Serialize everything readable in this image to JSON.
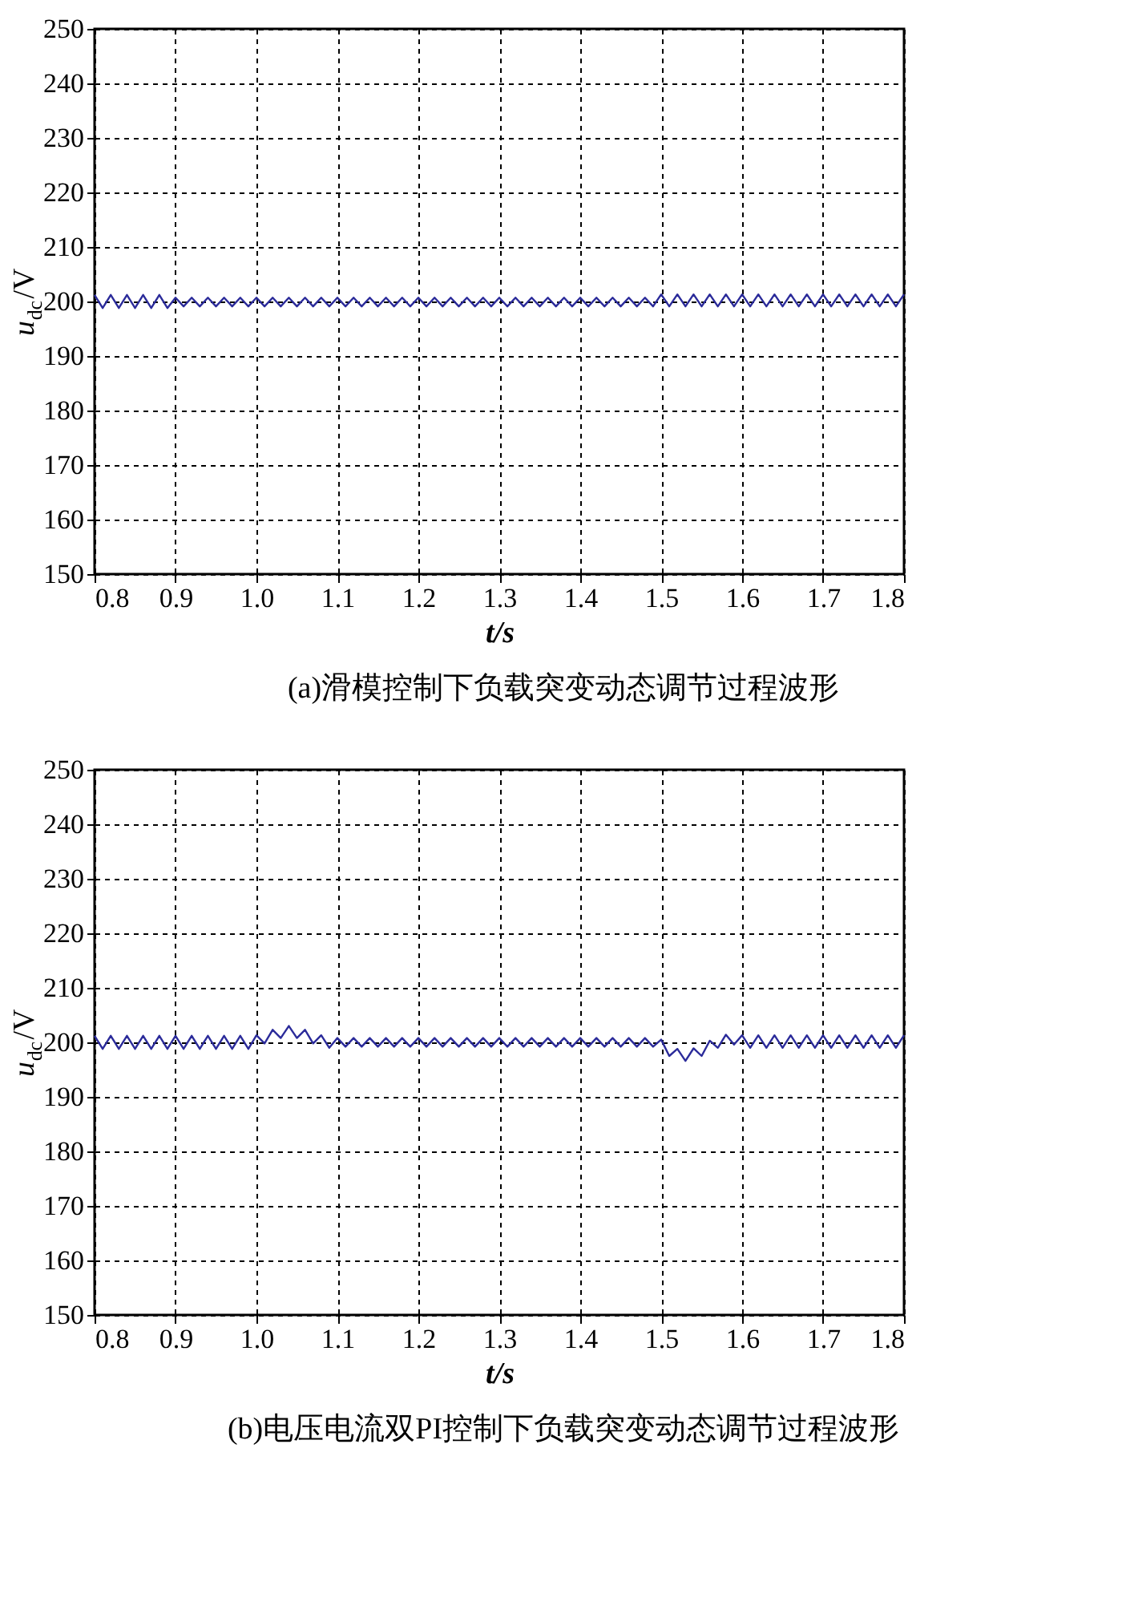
{
  "chart_data": [
    {
      "type": "line",
      "xlabel": "t/s",
      "ylabel": "u$_{dc}$/V",
      "annotations": [
        "(a)滑模控制下负载突变动态调节过程波形"
      ],
      "xlim": [
        0.8,
        1.8
      ],
      "xticks": [
        0.8,
        0.9,
        {
          "value": 1,
          "label": "1.0"
        },
        1.1,
        1.2,
        1.3,
        1.4,
        1.5,
        1.6,
        1.7,
        1.8
      ],
      "ylim": [
        150,
        250
      ],
      "yticks": [
        150,
        160,
        170,
        180,
        190,
        200,
        210,
        220,
        230,
        240,
        250
      ],
      "grid": true,
      "line_style": "solid",
      "x": [
        0.8,
        0.81,
        0.82,
        0.83,
        0.84,
        0.85,
        0.86,
        0.87,
        0.88,
        0.89,
        0.9,
        0.91,
        0.92,
        0.93,
        0.94,
        0.95,
        0.96,
        0.97,
        0.98,
        0.99,
        1.0,
        1.01,
        1.02,
        1.03,
        1.04,
        1.05,
        1.06,
        1.07,
        1.08,
        1.09,
        1.1,
        1.11,
        1.12,
        1.13,
        1.14,
        1.15,
        1.16,
        1.17,
        1.18,
        1.19,
        1.2,
        1.21,
        1.22,
        1.23,
        1.24,
        1.25,
        1.26,
        1.27,
        1.28,
        1.29,
        1.3,
        1.31,
        1.32,
        1.33,
        1.34,
        1.35,
        1.36,
        1.37,
        1.38,
        1.39,
        1.4,
        1.41,
        1.42,
        1.43,
        1.44,
        1.45,
        1.46,
        1.47,
        1.48,
        1.49,
        1.5,
        1.51,
        1.52,
        1.53,
        1.54,
        1.55,
        1.56,
        1.57,
        1.58,
        1.59,
        1.6,
        1.61,
        1.62,
        1.63,
        1.64,
        1.65,
        1.66,
        1.67,
        1.68,
        1.69,
        1.7,
        1.71,
        1.72,
        1.73,
        1.74,
        1.75,
        1.76,
        1.77,
        1.78,
        1.79,
        1.8
      ],
      "series": [
        {
          "color": "#2b2b9a",
          "values": [
            201.2,
            198.8,
            201.2,
            198.8,
            201.2,
            198.8,
            201.2,
            198.8,
            201.2,
            198.8,
            200.7,
            199.1,
            200.7,
            199.1,
            200.7,
            199.1,
            200.7,
            199.1,
            200.7,
            199.1,
            200.7,
            199.1,
            200.7,
            199.1,
            200.7,
            199.1,
            200.7,
            199.1,
            200.7,
            199.1,
            200.7,
            199.1,
            200.7,
            199.1,
            200.7,
            199.1,
            200.7,
            199.1,
            200.7,
            199.1,
            200.7,
            199.1,
            200.7,
            199.1,
            200.7,
            199.1,
            200.7,
            199.1,
            200.7,
            199.1,
            200.7,
            199.1,
            200.7,
            199.1,
            200.7,
            199.1,
            200.7,
            199.1,
            200.7,
            199.1,
            200.7,
            199.1,
            200.7,
            199.1,
            200.7,
            199.1,
            200.7,
            199.1,
            200.7,
            199.1,
            201.3,
            199.1,
            201.3,
            199.1,
            201.3,
            199.1,
            201.3,
            199.1,
            201.3,
            199.1,
            201.3,
            199.1,
            201.3,
            199.1,
            201.3,
            199.1,
            201.3,
            199.1,
            201.3,
            199.1,
            201.3,
            199.1,
            201.3,
            199.1,
            201.3,
            199.1,
            201.3,
            199.1,
            201.3,
            199.1,
            201.3
          ]
        }
      ]
    },
    {
      "type": "line",
      "xlabel": "t/s",
      "ylabel": "u$_{dc}$/V",
      "annotations": [
        "(b)电压电流双PI控制下负载突变动态调节过程波形"
      ],
      "xlim": [
        0.8,
        1.8
      ],
      "xticks": [
        0.8,
        0.9,
        {
          "value": 1,
          "label": "1.0"
        },
        1.1,
        1.2,
        1.3,
        1.4,
        1.5,
        1.6,
        1.7,
        1.8
      ],
      "ylim": [
        150,
        250
      ],
      "yticks": [
        150,
        160,
        170,
        180,
        190,
        200,
        210,
        220,
        230,
        240,
        250
      ],
      "grid": true,
      "line_style": "solid",
      "x": [
        0.8,
        0.81,
        0.82,
        0.83,
        0.84,
        0.85,
        0.86,
        0.87,
        0.88,
        0.89,
        0.9,
        0.91,
        0.92,
        0.93,
        0.94,
        0.95,
        0.96,
        0.97,
        0.98,
        0.99,
        1.0,
        1.01,
        1.02,
        1.03,
        1.04,
        1.05,
        1.06,
        1.07,
        1.08,
        1.09,
        1.1,
        1.11,
        1.12,
        1.13,
        1.14,
        1.15,
        1.16,
        1.17,
        1.18,
        1.19,
        1.2,
        1.21,
        1.22,
        1.23,
        1.24,
        1.25,
        1.26,
        1.27,
        1.28,
        1.29,
        1.3,
        1.31,
        1.32,
        1.33,
        1.34,
        1.35,
        1.36,
        1.37,
        1.38,
        1.39,
        1.4,
        1.41,
        1.42,
        1.43,
        1.44,
        1.45,
        1.46,
        1.47,
        1.48,
        1.49,
        1.5,
        1.51,
        1.52,
        1.53,
        1.54,
        1.55,
        1.56,
        1.57,
        1.58,
        1.59,
        1.6,
        1.61,
        1.62,
        1.63,
        1.64,
        1.65,
        1.66,
        1.67,
        1.68,
        1.69,
        1.7,
        1.71,
        1.72,
        1.73,
        1.74,
        1.75,
        1.76,
        1.77,
        1.78,
        1.79,
        1.8
      ],
      "series": [
        {
          "color": "#2b2b9a",
          "values": [
            201.2,
            198.8,
            201.2,
            198.8,
            201.2,
            198.8,
            201.2,
            198.8,
            201.2,
            198.8,
            201.2,
            198.8,
            201.2,
            198.8,
            201.2,
            198.8,
            201.2,
            198.8,
            201.2,
            198.8,
            201.3,
            199.8,
            202.3,
            200.8,
            203,
            200.8,
            202.3,
            199.8,
            201.3,
            199,
            200.8,
            199.2,
            200.8,
            199.2,
            200.8,
            199.2,
            200.8,
            199.2,
            200.8,
            199.2,
            200.8,
            199.2,
            200.8,
            199.2,
            200.8,
            199.2,
            200.8,
            199.2,
            200.8,
            199.2,
            200.8,
            199.2,
            200.8,
            199.2,
            200.8,
            199.2,
            200.8,
            199.2,
            200.8,
            199.2,
            200.8,
            199.2,
            200.8,
            199.2,
            200.8,
            199.2,
            200.8,
            199.2,
            200.8,
            199.2,
            200.5,
            197.5,
            198.8,
            196.6,
            198.9,
            197.5,
            200.3,
            199,
            201.4,
            199.6,
            201.3,
            199,
            201.3,
            199,
            201.3,
            199,
            201.3,
            199,
            201.3,
            199,
            201.3,
            199,
            201.3,
            199,
            201.3,
            199,
            201.3,
            199,
            201.3,
            199,
            201.3
          ]
        }
      ]
    }
  ]
}
